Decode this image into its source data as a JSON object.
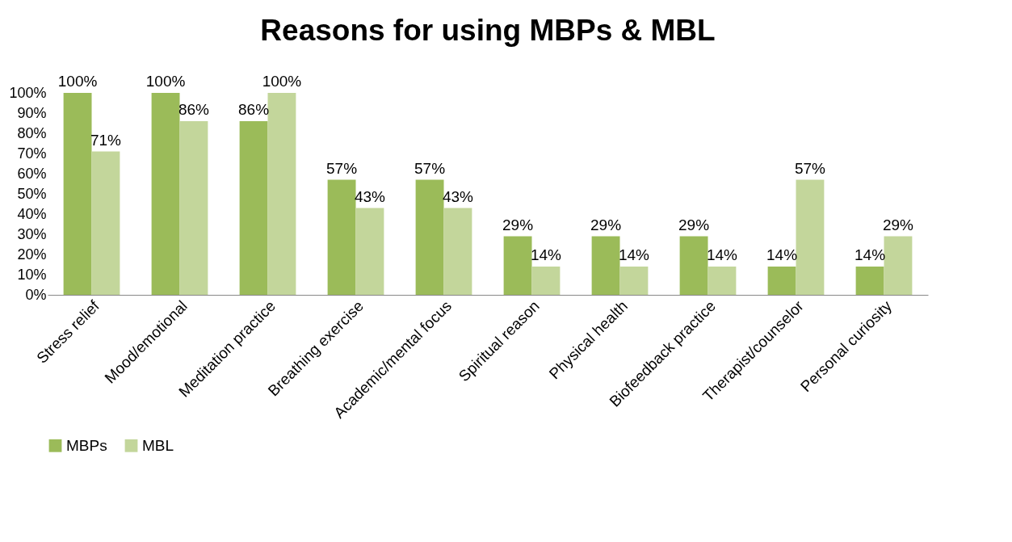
{
  "chart_data": {
    "type": "bar",
    "title": "Reasons for using MBPs & MBL",
    "categories": [
      "Stress relief",
      "Mood/emotional",
      "Meditation practice",
      "Breathing exercise",
      "Academic/mental focus",
      "Spiritual reason",
      "Physical health",
      "Biofeedback practice",
      "Therapist/counselor",
      "Personal curiosity"
    ],
    "series": [
      {
        "name": "MBPs",
        "color": "#9bbb59",
        "values": [
          100,
          100,
          86,
          57,
          57,
          29,
          29,
          29,
          14,
          14
        ],
        "value_labels": [
          "100%",
          "100%",
          "86%",
          "57%",
          "57%",
          "29%",
          "29%",
          "29%",
          "14%",
          "14%"
        ]
      },
      {
        "name": "MBL",
        "color": "#c3d69b",
        "values": [
          71,
          86,
          100,
          43,
          43,
          14,
          14,
          14,
          57,
          29
        ],
        "value_labels": [
          "71%",
          "86%",
          "100%",
          "43%",
          "43%",
          "14%",
          "14%",
          "14%",
          "57%",
          "29%"
        ]
      }
    ],
    "ylim": [
      0,
      100
    ],
    "yticks": [
      {
        "value": 0,
        "label": "0%"
      },
      {
        "value": 10,
        "label": "10%"
      },
      {
        "value": 20,
        "label": "20%"
      },
      {
        "value": 30,
        "label": "30%"
      },
      {
        "value": 40,
        "label": "40%"
      },
      {
        "value": 50,
        "label": "50%"
      },
      {
        "value": 60,
        "label": "60%"
      },
      {
        "value": 70,
        "label": "70%"
      },
      {
        "value": 80,
        "label": "80%"
      },
      {
        "value": 90,
        "label": "90%"
      },
      {
        "value": 100,
        "label": "100%"
      }
    ],
    "legend": "bottom"
  }
}
